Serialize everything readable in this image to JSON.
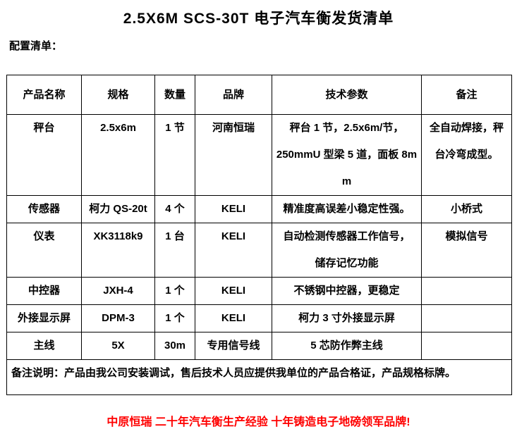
{
  "document": {
    "title": "2.5X6M SCS-30T 电子汽车衡发货清单",
    "section_label": "配置清单：",
    "slogan": "中原恒瑞 二十年汽车衡生产经验 十年铸造电子地磅领军品牌!"
  },
  "table": {
    "headers": [
      "产品名称",
      "规格",
      "数量",
      "品牌",
      "技术参数",
      "备注"
    ],
    "rows": [
      [
        "秤台",
        "2.5x6m",
        "1 节",
        "河南恒瑞",
        "秤台 1 节，2.5x6m/节，\n250mmU 型梁 5 道，面板 8mm",
        "全自动焊接，秤\n台冷弯成型。"
      ],
      [
        "传感器",
        "柯力 QS-20t",
        "4 个",
        "KELI",
        "精准度高误差小稳定性强。",
        "小桥式"
      ],
      [
        "仪表",
        "XK3118k9",
        "1 台",
        "KELI",
        "自动检测传感器工作信号，\n储存记忆功能",
        "模拟信号"
      ],
      [
        "中控器",
        "JXH-4",
        "1 个",
        "KELI",
        "不锈钢中控器，更稳定",
        ""
      ],
      [
        "外接显示屏",
        "DPM-3",
        "1 个",
        "KELI",
        "柯力 3 寸外接显示屏",
        ""
      ],
      [
        "主线",
        "5X",
        "30m",
        "专用信号线",
        "5 芯防作弊主线",
        ""
      ]
    ],
    "footer_note": "备注说明：产品由我公司安装调试，售后技术人员应提供我单位的产品合格证，产品规格标牌。"
  },
  "colors": {
    "slogan_red": "#ff0000",
    "text_black": "#000000",
    "border_black": "#000000",
    "background": "#ffffff"
  }
}
